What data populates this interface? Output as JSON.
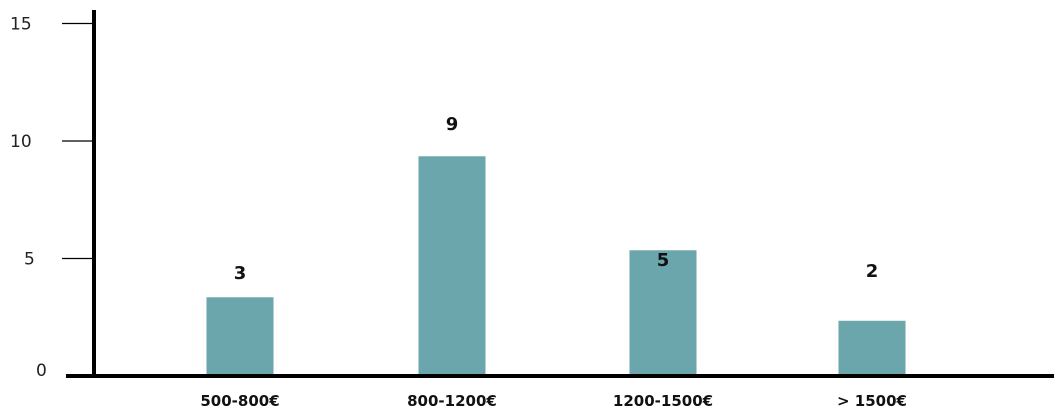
{
  "chart_data": {
    "type": "bar",
    "title": "",
    "xlabel": "",
    "ylabel": "",
    "categories": [
      "500-800€",
      "800-1200€",
      "1200-1500€",
      "> 1500€"
    ],
    "values": [
      3,
      9,
      5,
      2
    ],
    "ylim": [
      0,
      15
    ],
    "yticks": [
      0,
      5,
      10,
      15
    ],
    "grid": false,
    "legend": "none",
    "bar_color": "#6aa6ab",
    "axis_color": "#000000"
  }
}
